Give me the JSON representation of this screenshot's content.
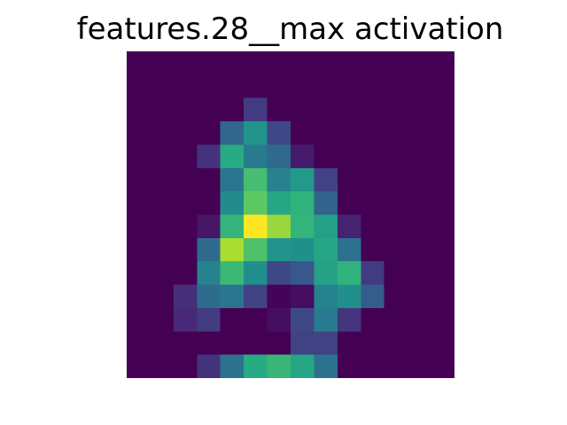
{
  "chart_data": {
    "type": "heatmap",
    "title": "features.28__max activation",
    "xlabel": "",
    "ylabel": "",
    "axes_visible": false,
    "colormap": "viridis",
    "vmin": 0.0,
    "vmax": 1.0,
    "rows": 14,
    "cols": 14,
    "values": [
      [
        0,
        0,
        0,
        0,
        0,
        0,
        0,
        0,
        0,
        0,
        0,
        0,
        0,
        0
      ],
      [
        0,
        0,
        0,
        0,
        0,
        0,
        0,
        0,
        0,
        0,
        0,
        0,
        0,
        0
      ],
      [
        0,
        0,
        0,
        0,
        0,
        0.18,
        0,
        0,
        0,
        0,
        0,
        0,
        0,
        0
      ],
      [
        0,
        0,
        0,
        0,
        0.34,
        0.52,
        0.22,
        0,
        0,
        0,
        0,
        0,
        0,
        0
      ],
      [
        0,
        0,
        0,
        0.15,
        0.62,
        0.42,
        0.35,
        0.08,
        0,
        0,
        0,
        0,
        0,
        0
      ],
      [
        0,
        0,
        0,
        0,
        0.4,
        0.7,
        0.44,
        0.54,
        0.2,
        0,
        0,
        0,
        0,
        0
      ],
      [
        0,
        0,
        0,
        0,
        0.48,
        0.75,
        0.6,
        0.65,
        0.32,
        0,
        0,
        0,
        0,
        0
      ],
      [
        0,
        0,
        0,
        0.06,
        0.66,
        1.0,
        0.85,
        0.66,
        0.57,
        0.1,
        0,
        0,
        0,
        0
      ],
      [
        0,
        0,
        0,
        0.35,
        0.88,
        0.72,
        0.52,
        0.5,
        0.6,
        0.38,
        0,
        0,
        0,
        0
      ],
      [
        0,
        0,
        0,
        0.45,
        0.68,
        0.5,
        0.22,
        0.28,
        0.58,
        0.65,
        0.18,
        0,
        0,
        0
      ],
      [
        0,
        0,
        0.14,
        0.36,
        0.4,
        0.2,
        0.01,
        0.04,
        0.45,
        0.5,
        0.3,
        0,
        0,
        0
      ],
      [
        0,
        0,
        0.12,
        0.18,
        0,
        0,
        0.04,
        0.22,
        0.42,
        0.16,
        0,
        0,
        0,
        0
      ],
      [
        0,
        0,
        0,
        0,
        0,
        0,
        0,
        0.2,
        0.2,
        0,
        0,
        0,
        0,
        0
      ],
      [
        0,
        0,
        0,
        0.15,
        0.38,
        0.62,
        0.67,
        0.6,
        0.38,
        0,
        0,
        0,
        0,
        0
      ]
    ]
  }
}
